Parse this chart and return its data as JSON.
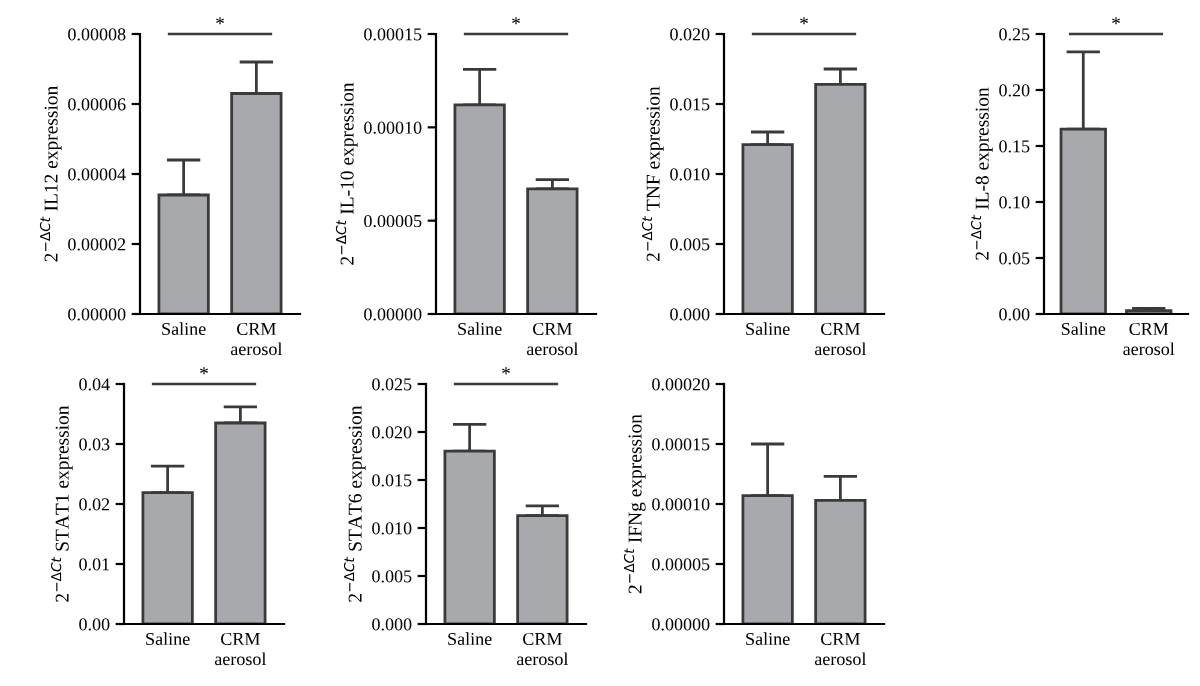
{
  "chart_data": [
    {
      "type": "bar",
      "ylabel": "2$^{−ΔCt}$ IL12 expression",
      "categories": [
        "Saline",
        "CRM\naerosol"
      ],
      "values": [
        3.4e-05,
        6.3e-05
      ],
      "errors": [
        [
          3.4e-05,
          4.4e-05
        ],
        [
          6.3e-05,
          7.2e-05
        ]
      ],
      "color": "#a7a9ac",
      "ylim": [
        0,
        8e-05
      ],
      "yticks": [
        {
          "value": 0,
          "label": "0.00000"
        },
        {
          "value": 2e-05,
          "label": "0.00002"
        },
        {
          "value": 4e-05,
          "label": "0.00004"
        },
        {
          "value": 6e-05,
          "label": "0.00006"
        },
        {
          "value": 8e-05,
          "label": "0.00008"
        }
      ],
      "annotations": [
        "*"
      ]
    },
    {
      "type": "bar",
      "ylabel": "2$^{−ΔCt}$ IL-10 expression",
      "categories": [
        "Saline",
        "CRM\naerosol"
      ],
      "values": [
        0.000112,
        6.7e-05
      ],
      "errors": [
        [
          0.000112,
          0.000131
        ],
        [
          6.7e-05,
          7.2e-05
        ]
      ],
      "color": "#a7a9ac",
      "ylim": [
        0,
        0.00015
      ],
      "yticks": [
        {
          "value": 0,
          "label": "0.00000"
        },
        {
          "value": 5e-05,
          "label": "0.00005"
        },
        {
          "value": 0.0001,
          "label": "0.00010"
        },
        {
          "value": 0.00015,
          "label": "0.00015"
        }
      ],
      "annotations": [
        "*"
      ]
    },
    {
      "type": "bar",
      "ylabel": "2$^{−ΔCt}$ TNF expression",
      "categories": [
        "Saline",
        "CRM\naerosol"
      ],
      "values": [
        0.0121,
        0.0164
      ],
      "errors": [
        [
          0.0121,
          0.013
        ],
        [
          0.0164,
          0.0175
        ]
      ],
      "color": "#a7a9ac",
      "ylim": [
        0,
        0.02
      ],
      "yticks": [
        {
          "value": 0,
          "label": "0.000"
        },
        {
          "value": 0.005,
          "label": "0.005"
        },
        {
          "value": 0.01,
          "label": "0.010"
        },
        {
          "value": 0.015,
          "label": "0.015"
        },
        {
          "value": 0.02,
          "label": "0.020"
        }
      ],
      "annotations": [
        "*"
      ]
    },
    {
      "type": "bar",
      "ylabel": "2$^{−ΔCt}$ IL-8 expression",
      "categories": [
        "Saline",
        "CRM\naerosol"
      ],
      "values": [
        0.165,
        0.003
      ],
      "errors": [
        [
          0.165,
          0.234
        ],
        [
          0.003,
          0.005
        ]
      ],
      "color": "#a7a9ac",
      "ylim": [
        0,
        0.25
      ],
      "yticks": [
        {
          "value": 0,
          "label": "0.00"
        },
        {
          "value": 0.05,
          "label": "0.05"
        },
        {
          "value": 0.1,
          "label": "0.10"
        },
        {
          "value": 0.15,
          "label": "0.15"
        },
        {
          "value": 0.2,
          "label": "0.20"
        },
        {
          "value": 0.25,
          "label": "0.25"
        }
      ],
      "annotations": [
        "*"
      ]
    },
    {
      "type": "bar",
      "ylabel": "2$^{−ΔCt}$ STAT1 expression",
      "categories": [
        "Saline",
        "CRM\naerosol"
      ],
      "values": [
        0.0219,
        0.0335
      ],
      "errors": [
        [
          0.0219,
          0.0263
        ],
        [
          0.0335,
          0.0362
        ]
      ],
      "color": "#a7a9ac",
      "ylim": [
        0,
        0.04
      ],
      "yticks": [
        {
          "value": 0,
          "label": "0.00"
        },
        {
          "value": 0.01,
          "label": "0.01"
        },
        {
          "value": 0.02,
          "label": "0.02"
        },
        {
          "value": 0.03,
          "label": "0.03"
        },
        {
          "value": 0.04,
          "label": "0.04"
        }
      ],
      "annotations": [
        "*"
      ]
    },
    {
      "type": "bar",
      "ylabel": "2$^{−ΔCt}$ STAT6 expression",
      "categories": [
        "Saline",
        "CRM\naerosol"
      ],
      "values": [
        0.018,
        0.0113
      ],
      "errors": [
        [
          0.018,
          0.0208
        ],
        [
          0.0113,
          0.0123
        ]
      ],
      "color": "#a7a9ac",
      "ylim": [
        0,
        0.025
      ],
      "yticks": [
        {
          "value": 0,
          "label": "0.000"
        },
        {
          "value": 0.005,
          "label": "0.005"
        },
        {
          "value": 0.01,
          "label": "0.010"
        },
        {
          "value": 0.015,
          "label": "0.015"
        },
        {
          "value": 0.02,
          "label": "0.020"
        },
        {
          "value": 0.025,
          "label": "0.025"
        }
      ],
      "annotations": [
        "*"
      ]
    },
    {
      "type": "bar",
      "ylabel": "2$^{−ΔCt}$ IFNg expression",
      "categories": [
        "Saline",
        "CRM\naerosol"
      ],
      "values": [
        0.000107,
        0.000103
      ],
      "errors": [
        [
          0.000107,
          0.00015
        ],
        [
          0.000103,
          0.000123
        ]
      ],
      "color": "#a7a9ac",
      "ylim": [
        0,
        0.0002
      ],
      "yticks": [
        {
          "value": 0,
          "label": "0.00000"
        },
        {
          "value": 5e-05,
          "label": "0.00005"
        },
        {
          "value": 0.0001,
          "label": "0.00010"
        },
        {
          "value": 0.00015,
          "label": "0.00015"
        },
        {
          "value": 0.0002,
          "label": "0.00020"
        }
      ]
    }
  ]
}
